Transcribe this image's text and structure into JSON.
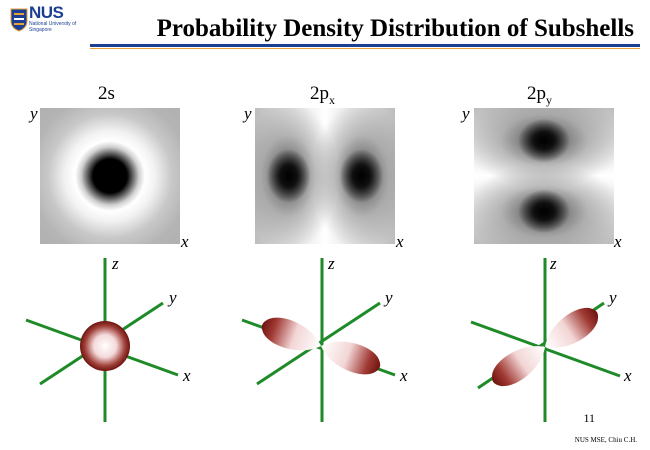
{
  "header": {
    "logo_text": "NUS",
    "logo_subtext": "National University of Singapore",
    "title": "Probability Density Distribution of Subshells"
  },
  "panels": [
    {
      "label_main": "2s",
      "label_sub": "",
      "axis_x": "x",
      "axis_y": "y",
      "orbital_axes": {
        "z": "z",
        "y": "y",
        "x": "x"
      }
    },
    {
      "label_main": "2p",
      "label_sub": "x",
      "axis_x": "x",
      "axis_y": "y",
      "orbital_axes": {
        "z": "z",
        "y": "y",
        "x": "x"
      }
    },
    {
      "label_main": "2p",
      "label_sub": "y",
      "axis_x": "x",
      "axis_y": "y",
      "orbital_axes": {
        "z": "z",
        "y": "y",
        "x": "x"
      }
    }
  ],
  "footer": {
    "page_number": "11",
    "credit": "NUS MSE, Chiu C.H."
  },
  "colors": {
    "axis_green": "#1e8a28",
    "lobe_dark": "#7a1a16",
    "lobe_light": "#ffffff",
    "title_rule": "#1c3f94"
  }
}
